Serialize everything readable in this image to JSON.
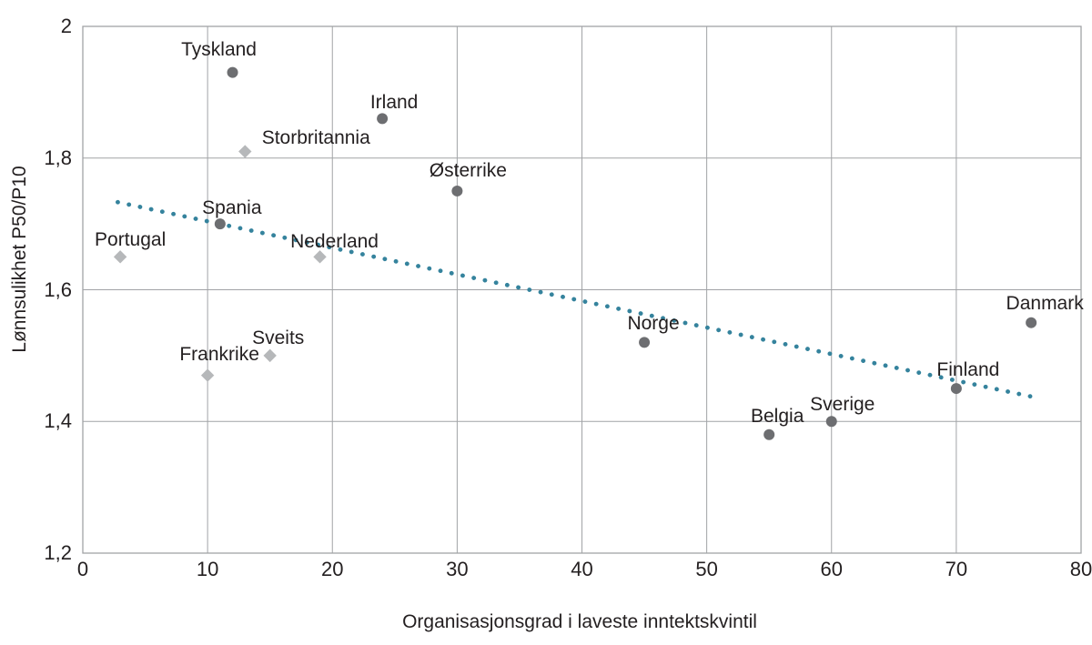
{
  "chart_data": {
    "type": "scatter",
    "title": "",
    "xlabel": "Organisasjonsgrad i laveste inntektskvintil",
    "ylabel": "Lønnsulikhet P50/P10",
    "xlim": [
      0,
      80
    ],
    "ylim": [
      1.2,
      2.0
    ],
    "grid": true,
    "legend": "none",
    "x_ticks": [
      {
        "value": 0,
        "label": "0"
      },
      {
        "value": 10,
        "label": "10"
      },
      {
        "value": 20,
        "label": "20"
      },
      {
        "value": 30,
        "label": "30"
      },
      {
        "value": 40,
        "label": "40"
      },
      {
        "value": 50,
        "label": "50"
      },
      {
        "value": 60,
        "label": "60"
      },
      {
        "value": 70,
        "label": "70"
      },
      {
        "value": 80,
        "label": "80"
      }
    ],
    "y_ticks": [
      {
        "value": 1.2,
        "label": "1,2"
      },
      {
        "value": 1.4,
        "label": "1,4"
      },
      {
        "value": 1.6,
        "label": "1,6"
      },
      {
        "value": 1.8,
        "label": "1,8"
      },
      {
        "value": 2.0,
        "label": "2"
      }
    ],
    "colors": {
      "grid": "#a1a3a6",
      "circle_marker": "#6d6e71",
      "diamond_marker": "#b6b8ba",
      "trendline": "#35839d",
      "text": "#231f20"
    },
    "series": [
      {
        "name": "circles",
        "marker": "circle",
        "color": "#6d6e71",
        "points": [
          {
            "label": "Spania",
            "x": 11,
            "y": 1.7,
            "label_dx": 13,
            "label_dy": -17
          },
          {
            "label": "Tyskland",
            "x": 12,
            "y": 1.93,
            "label_dx": -15,
            "label_dy": -25
          },
          {
            "label": "Irland",
            "x": 24,
            "y": 1.86,
            "label_dx": 13,
            "label_dy": -17
          },
          {
            "label": "Østerrike",
            "x": 30,
            "y": 1.75,
            "label_dx": 12,
            "label_dy": -22
          },
          {
            "label": "Norge",
            "x": 45,
            "y": 1.52,
            "label_dx": 10,
            "label_dy": -20
          },
          {
            "label": "Belgia",
            "x": 55,
            "y": 1.38,
            "label_dx": 9,
            "label_dy": -20
          },
          {
            "label": "Sverige",
            "x": 60,
            "y": 1.4,
            "label_dx": 12,
            "label_dy": -18
          },
          {
            "label": "Finland",
            "x": 70,
            "y": 1.45,
            "label_dx": 13,
            "label_dy": -20
          },
          {
            "label": "Danmark",
            "x": 76,
            "y": 1.55,
            "label_dx": 15,
            "label_dy": -21
          }
        ]
      },
      {
        "name": "diamonds",
        "marker": "diamond",
        "color": "#b6b8ba",
        "points": [
          {
            "label": "Portugal",
            "x": 3,
            "y": 1.65,
            "label_dx": 11,
            "label_dy": -18
          },
          {
            "label": "Frankrike",
            "x": 10,
            "y": 1.47,
            "label_dx": 13,
            "label_dy": -23
          },
          {
            "label": "Storbritannia",
            "x": 13,
            "y": 1.81,
            "label_dx": 78,
            "label_dy": -15
          },
          {
            "label": "Sveits",
            "x": 15,
            "y": 1.5,
            "label_dx": 9,
            "label_dy": -19
          },
          {
            "label": "Nederland",
            "x": 19,
            "y": 1.65,
            "label_dx": 16,
            "label_dy": -16
          }
        ]
      }
    ],
    "trendline": {
      "style": "dotted",
      "color": "#35839d",
      "x1": 2.8,
      "y1": 1.733,
      "x2": 76.2,
      "y2": 1.437
    }
  }
}
